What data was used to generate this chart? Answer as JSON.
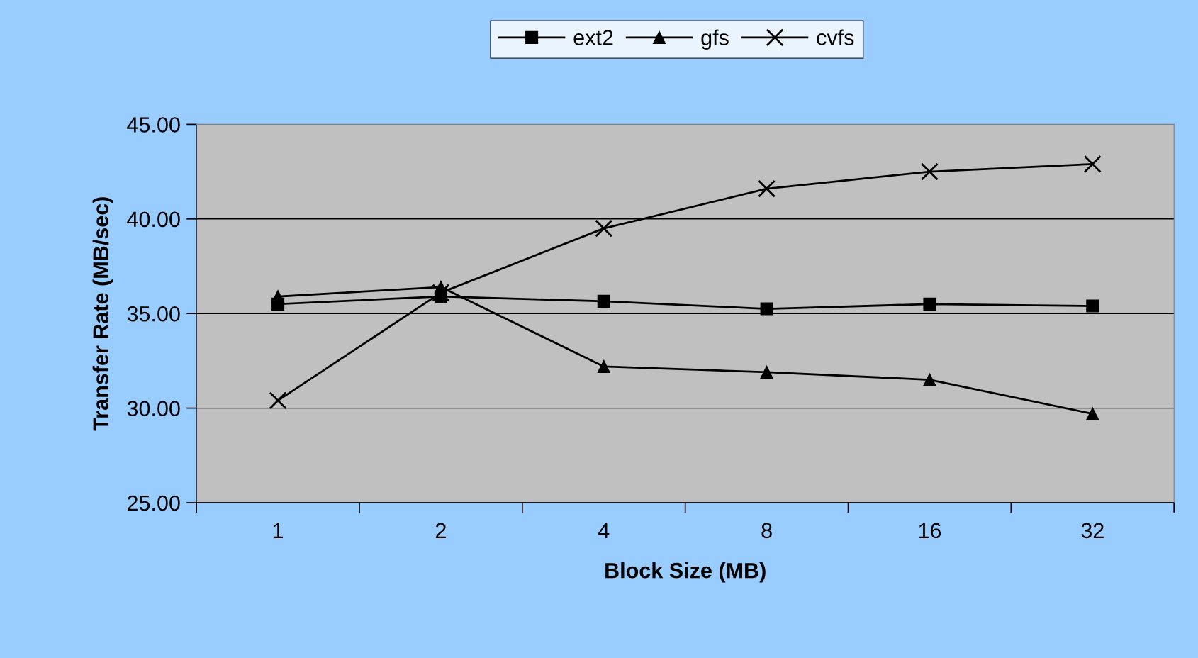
{
  "chart_data": {
    "type": "line",
    "xlabel": "Block Size (MB)",
    "ylabel": "Transfer Rate (MB/sec)",
    "categories": [
      "1",
      "2",
      "4",
      "8",
      "16",
      "32"
    ],
    "series": [
      {
        "name": "ext2",
        "color": "#000000",
        "marker": "square",
        "values": [
          35.5,
          35.9,
          35.65,
          35.25,
          35.5,
          35.4
        ]
      },
      {
        "name": "gfs",
        "color": "#000000",
        "marker": "triangle",
        "values": [
          35.9,
          36.4,
          32.2,
          31.9,
          31.5,
          29.7
        ]
      },
      {
        "name": "cvfs",
        "color": "#000000",
        "marker": "cross",
        "values": [
          30.4,
          36.1,
          39.5,
          41.6,
          42.5,
          42.9
        ]
      }
    ],
    "ylim": [
      25,
      45
    ],
    "yticks": [
      {
        "value": 25,
        "label": "25.00"
      },
      {
        "value": 30,
        "label": "30.00"
      },
      {
        "value": 35,
        "label": "35.00"
      },
      {
        "value": 40,
        "label": "40.00"
      },
      {
        "value": 45,
        "label": "45.00"
      }
    ],
    "grid": "y",
    "legend": "top",
    "line_style": "solid"
  }
}
